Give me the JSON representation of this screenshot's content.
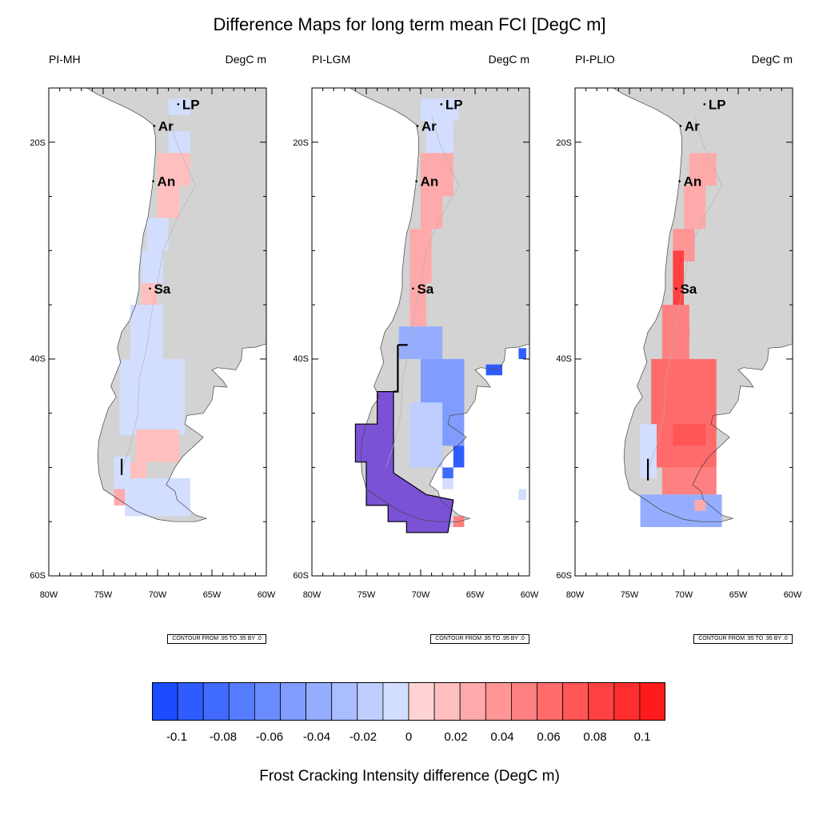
{
  "title": "Difference Maps for long term mean FCI [DegC m]",
  "units": "DegC m",
  "colorbar": {
    "label": "Frost Cracking Intensity difference (DegC m)",
    "ticks": [
      "-0.1",
      "-0.08",
      "-0.06",
      "-0.04",
      "-0.02",
      "0",
      "0.02",
      "0.04",
      "0.06",
      "0.08",
      "0.1"
    ],
    "colors": [
      "#1b4cff",
      "#2e5cff",
      "#416bff",
      "#557bff",
      "#6b8cff",
      "#809cff",
      "#95adff",
      "#aabdff",
      "#bfceff",
      "#d3deff",
      "#ffd3d3",
      "#ffbfbf",
      "#ffaaaa",
      "#ff9595",
      "#ff8080",
      "#ff6b6b",
      "#ff5555",
      "#ff4141",
      "#ff2e2e",
      "#ff1b1b"
    ]
  },
  "lat_labels": [
    "20S",
    "40S",
    "60S"
  ],
  "lon_labels": [
    "80W",
    "75W",
    "70W",
    "65W",
    "60W"
  ],
  "contour_note": "CONTOUR FROM .95 TO .95 BY .0",
  "cities": [
    {
      "code": "LP",
      "lon": -68.1,
      "lat": -16.5
    },
    {
      "code": "Ar",
      "lon": -70.3,
      "lat": -18.5
    },
    {
      "code": "An",
      "lon": -70.4,
      "lat": -23.6
    },
    {
      "code": "Sa",
      "lon": -70.7,
      "lat": -33.5
    }
  ],
  "panels": [
    {
      "id": "pi-mh",
      "title": "PI-MH",
      "cells": [
        {
          "lat0": -16,
          "lat1": -17.5,
          "lon0": -69,
          "lon1": -67,
          "v": -0.01
        },
        {
          "lat0": -19,
          "lat1": -21,
          "lon0": -69,
          "lon1": -67,
          "v": -0.01
        },
        {
          "lat0": -21,
          "lat1": -24,
          "lon0": -70,
          "lon1": -67,
          "v": 0.01
        },
        {
          "lat0": -24,
          "lat1": -27,
          "lon0": -70,
          "lon1": -68,
          "v": 0.01
        },
        {
          "lat0": -27,
          "lat1": -30,
          "lon0": -71,
          "lon1": -69,
          "v": -0.01
        },
        {
          "lat0": -30,
          "lat1": -33,
          "lon0": -71.5,
          "lon1": -69.5,
          "v": -0.01
        },
        {
          "lat0": -33,
          "lat1": -35,
          "lon0": -71.5,
          "lon1": -70,
          "v": 0.01
        },
        {
          "lat0": -35,
          "lat1": -40,
          "lon0": -72.5,
          "lon1": -69.5,
          "v": -0.01
        },
        {
          "lat0": -40,
          "lat1": -47,
          "lon0": -73.5,
          "lon1": -67.5,
          "v": -0.01
        },
        {
          "lat0": -46.5,
          "lat1": -49.5,
          "lon0": -72,
          "lon1": -68,
          "v": 0.01
        },
        {
          "lat0": -49.5,
          "lat1": -51,
          "lon0": -73,
          "lon1": -71,
          "v": 0.01
        },
        {
          "lat0": -49,
          "lat1": -52,
          "lon0": -74,
          "lon1": -72.5,
          "v": -0.01
        },
        {
          "lat0": -51,
          "lat1": -54.5,
          "lon0": -73,
          "lon1": -67,
          "v": -0.01
        },
        {
          "lat0": -52,
          "lat1": -53.5,
          "lon0": -74,
          "lon1": -73,
          "v": 0.02
        }
      ],
      "overlays": [
        {
          "type": "line",
          "points": [
            [
              -73.3,
              -49.2
            ],
            [
              -73.3,
              -50.7
            ]
          ]
        }
      ]
    },
    {
      "id": "pi-lgm",
      "title": "PI-LGM",
      "cells": [
        {
          "lat0": -16,
          "lat1": -18,
          "lon0": -70,
          "lon1": -66.5,
          "v": -0.01
        },
        {
          "lat0": -18,
          "lat1": -21,
          "lon0": -69.5,
          "lon1": -67,
          "v": -0.01
        },
        {
          "lat0": -21,
          "lat1": -25,
          "lon0": -70,
          "lon1": -67,
          "v": 0.02
        },
        {
          "lat0": -25,
          "lat1": -28,
          "lon0": -70,
          "lon1": -68,
          "v": 0.02
        },
        {
          "lat0": -28,
          "lat1": -33,
          "lon0": -71,
          "lon1": -69,
          "v": 0.02
        },
        {
          "lat0": -33,
          "lat1": -37,
          "lon0": -71,
          "lon1": -69.5,
          "v": 0.02
        },
        {
          "lat0": -37,
          "lat1": -40,
          "lon0": -72,
          "lon1": -68,
          "v": -0.04
        },
        {
          "lat0": -40,
          "lat1": -48,
          "lon0": -70,
          "lon1": -66,
          "v": -0.05
        },
        {
          "lat0": -44,
          "lat1": -50,
          "lon0": -71,
          "lon1": -68,
          "v": -0.02
        },
        {
          "lat0": -48,
          "lat1": -50,
          "lon0": -67,
          "lon1": -66,
          "v": -0.09
        },
        {
          "lat0": -40.5,
          "lat1": -41.5,
          "lon0": -64,
          "lon1": -62.5,
          "v": -0.09
        },
        {
          "lat0": -39,
          "lat1": -40,
          "lon0": -61,
          "lon1": -60.3,
          "v": -0.09
        },
        {
          "lat0": -50,
          "lat1": -51,
          "lon0": -68,
          "lon1": -67,
          "v": -0.08
        },
        {
          "lat0": -51,
          "lat1": -52,
          "lon0": -68,
          "lon1": -67,
          "v": -0.01
        },
        {
          "lat0": -53,
          "lat1": -55.5,
          "lon0": -70,
          "lon1": -67,
          "v": -0.01
        },
        {
          "lat0": -54.5,
          "lat1": -55.5,
          "lon0": -67,
          "lon1": -66,
          "v": 0.04
        },
        {
          "lat0": -52,
          "lat1": -53,
          "lon0": -61,
          "lon1": -60.3,
          "v": -0.01
        }
      ],
      "overlays": [
        {
          "type": "polygon",
          "points": [
            [
              -72.5,
              -43
            ],
            [
              -72.5,
              -50.5
            ],
            [
              -69.5,
              -52.5
            ],
            [
              -67,
              -53
            ],
            [
              -67.5,
              -56
            ],
            [
              -71.3,
              -56
            ],
            [
              -71.3,
              -55
            ],
            [
              -73,
              -55
            ],
            [
              -73,
              -53.5
            ],
            [
              -75,
              -53.5
            ],
            [
              -75,
              -49.5
            ],
            [
              -76,
              -49.5
            ],
            [
              -76,
              -46
            ],
            [
              -74,
              -46
            ],
            [
              -74,
              -43
            ]
          ],
          "fill": "#7b52d6",
          "stroke": "#000000"
        },
        {
          "type": "line",
          "points": [
            [
              -72.1,
              -38.7
            ],
            [
              -72.1,
              -43
            ],
            [
              -72.5,
              -43
            ]
          ]
        },
        {
          "type": "line",
          "points": [
            [
              -72.1,
              -38.7
            ],
            [
              -71.2,
              -38.7
            ]
          ]
        }
      ]
    },
    {
      "id": "pi-plio",
      "title": "PI-PLIO",
      "cells": [
        {
          "lat0": -21,
          "lat1": -24,
          "lon0": -69.5,
          "lon1": -67,
          "v": 0.02
        },
        {
          "lat0": -24,
          "lat1": -28,
          "lon0": -70,
          "lon1": -68,
          "v": 0.02
        },
        {
          "lat0": -28,
          "lat1": -31,
          "lon0": -71,
          "lon1": -69,
          "v": 0.03
        },
        {
          "lat0": -30,
          "lat1": -38,
          "lon0": -71,
          "lon1": -70,
          "v": 0.07
        },
        {
          "lat0": -37,
          "lat1": -38,
          "lon0": -70,
          "lon1": -69.5,
          "v": 0.09
        },
        {
          "lat0": -35,
          "lat1": -40,
          "lon0": -72,
          "lon1": -69.5,
          "v": 0.04
        },
        {
          "lat0": -40,
          "lat1": -50,
          "lon0": -73,
          "lon1": -67,
          "v": 0.05
        },
        {
          "lat0": -46,
          "lat1": -48,
          "lon0": -71,
          "lon1": -68,
          "v": 0.06
        },
        {
          "lat0": -46,
          "lat1": -51,
          "lon0": -74,
          "lon1": -72.5,
          "v": -0.01
        },
        {
          "lat0": -50,
          "lat1": -52.5,
          "lon0": -72,
          "lon1": -67,
          "v": 0.04
        },
        {
          "lat0": -52.5,
          "lat1": -55.5,
          "lon0": -74,
          "lon1": -66.5,
          "v": -0.04
        },
        {
          "lat0": -53,
          "lat1": -54,
          "lon0": -69,
          "lon1": -68,
          "v": 0.02
        }
      ],
      "overlays": [
        {
          "type": "line",
          "points": [
            [
              -73.3,
              -49.2
            ],
            [
              -73.3,
              -51.2
            ]
          ]
        }
      ]
    }
  ]
}
